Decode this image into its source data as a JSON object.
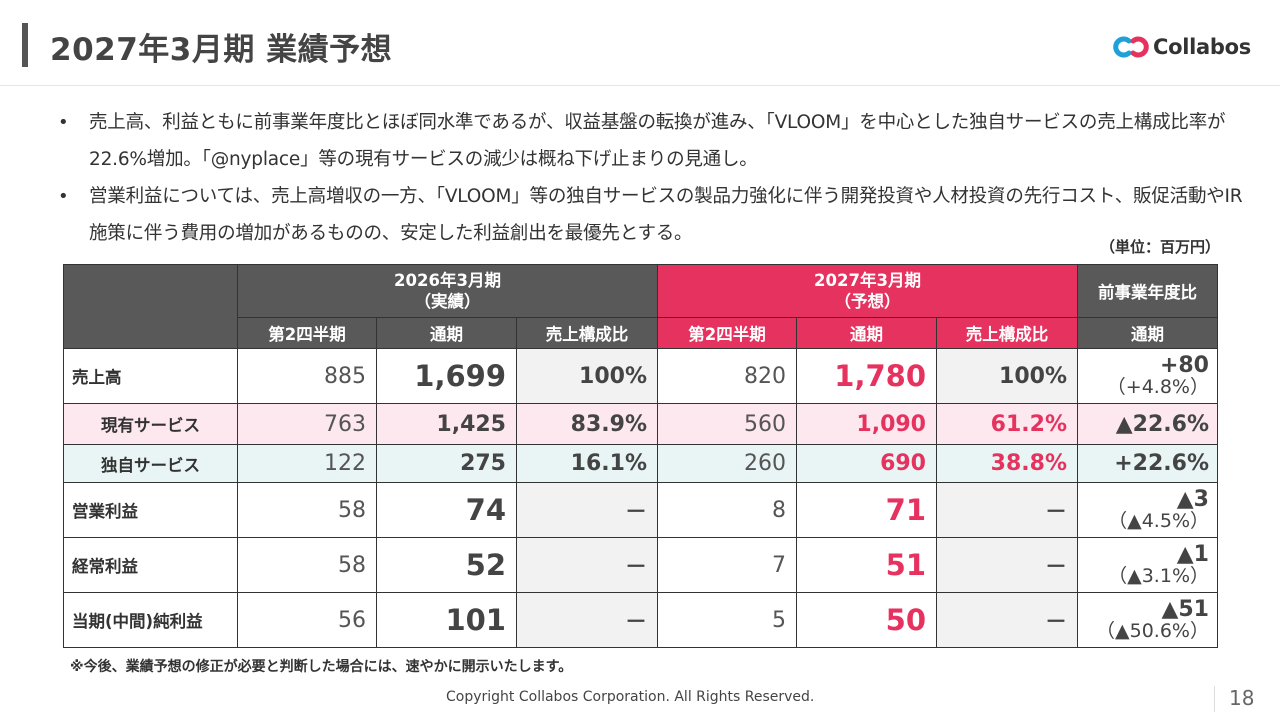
{
  "header": {
    "title": "2027年3月期 業績予想",
    "logo_text": "Collabos",
    "logo_colors": {
      "blue": "#1fa0d8",
      "red": "#e6325f",
      "text": "#333333"
    }
  },
  "bullets": [
    "売上高、利益ともに前事業年度比とほぼ同水準であるが、収益基盤の転換が進み、「VLOOM」を中心とした独自サービスの売上構成比率が22.6%増加。「@nyplace」等の現有サービスの減少は概ね下げ止まりの見通し。",
    "営業利益については、売上高増収の一方、「VLOOM」等の独自サービスの製品力強化に伴う開発投資や人材投資の先行コスト、販促活動やIR施策に伴う費用の増加があるものの、安定した利益創出を最優先とする。"
  ],
  "bullet_marker": "•",
  "unit": "（単位：百万円）",
  "table": {
    "group_2026": "2026年3月期\n（実績）",
    "group_2027": "2027年3月期\n（予想）",
    "group_cmp": "前事業年度比",
    "sub_headers": [
      "第2四半期",
      "通期",
      "売上構成比",
      "第2四半期",
      "通期",
      "売上構成比",
      "通期"
    ],
    "rows": [
      {
        "label": "売上高",
        "q2_2026": "885",
        "fy_2026": "1,699",
        "ratio_2026": "100%",
        "q2_2027": "820",
        "fy_2027": "1,780",
        "ratio_2027": "100%",
        "cmp_1": "+80",
        "cmp_2": "（+4.8%）"
      },
      {
        "label": "現有サービス",
        "q2_2026": "763",
        "fy_2026": "1,425",
        "ratio_2026": "83.9%",
        "q2_2027": "560",
        "fy_2027": "1,090",
        "ratio_2027": "61.2%",
        "cmp_1": "▲22.6%"
      },
      {
        "label": "独自サービス",
        "q2_2026": "122",
        "fy_2026": "275",
        "ratio_2026": "16.1%",
        "q2_2027": "260",
        "fy_2027": "690",
        "ratio_2027": "38.8%",
        "cmp_1": "+22.6%"
      },
      {
        "label": "営業利益",
        "q2_2026": "58",
        "fy_2026": "74",
        "ratio_2026": "－",
        "q2_2027": "8",
        "fy_2027": "71",
        "ratio_2027": "－",
        "cmp_1": "▲3",
        "cmp_2": "（▲4.5%）"
      },
      {
        "label": "経常利益",
        "q2_2026": "58",
        "fy_2026": "52",
        "ratio_2026": "－",
        "q2_2027": "7",
        "fy_2027": "51",
        "ratio_2027": "－",
        "cmp_1": "▲1",
        "cmp_2": "（▲3.1%）"
      },
      {
        "label": "当期(中間)純利益",
        "q2_2026": "56",
        "fy_2026": "101",
        "ratio_2026": "－",
        "q2_2027": "5",
        "fy_2027": "50",
        "ratio_2027": "－",
        "cmp_1": "▲51",
        "cmp_2": "（▲50.6%）"
      }
    ],
    "colors": {
      "dark_header": "#595959",
      "forecast_header": "#e6325f",
      "existing_row": "#fce8ee",
      "original_row": "#e8f5f4",
      "ratio_col": "#f2f2f2"
    }
  },
  "note": "※今後、業績予想の修正が必要と判断した場合には、速やかに開示いたします。",
  "footer": {
    "copyright": "Copyright Collabos Corporation. All Rights Reserved.",
    "page": "18"
  }
}
